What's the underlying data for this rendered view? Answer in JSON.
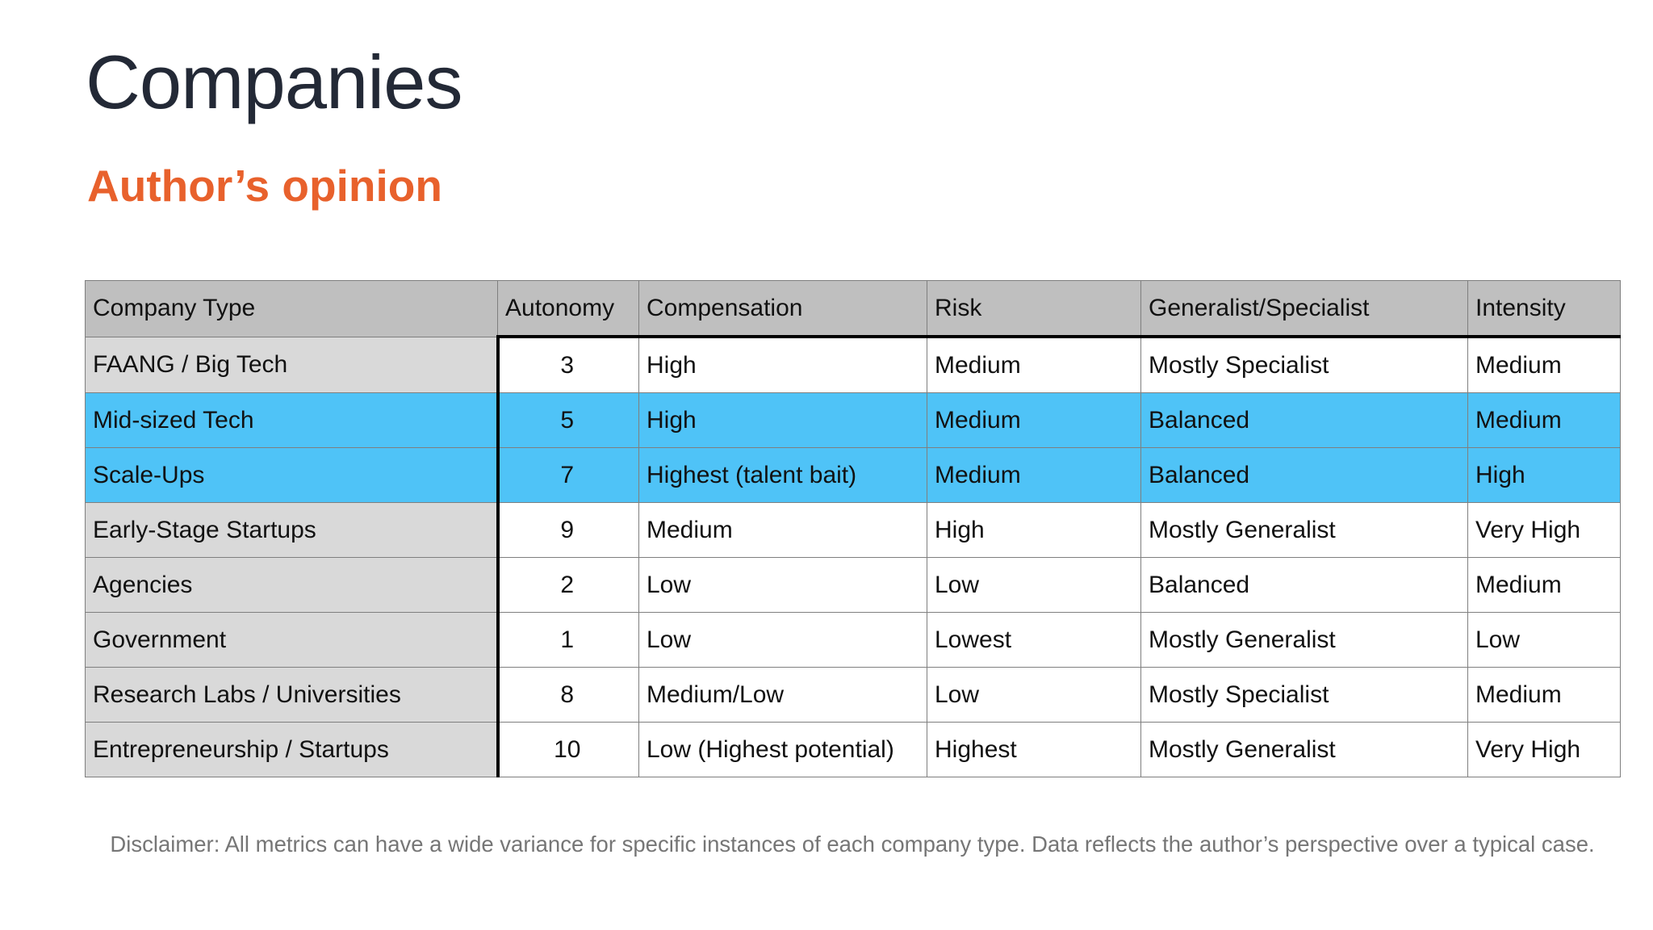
{
  "slide": {
    "title": "Companies",
    "subtitle": "Author’s opinion",
    "disclaimer": "Disclaimer: All metrics can have a wide variance for specific instances of each company type. Data reflects the author’s perspective over a typical case."
  },
  "table": {
    "columns": [
      "Company Type",
      "Autonomy",
      "Compensation",
      "Risk",
      "Generalist/Specialist",
      "Intensity"
    ],
    "rows": [
      {
        "company_type": "FAANG / Big Tech",
        "autonomy": "3",
        "compensation": "High",
        "risk": "Medium",
        "generalist_specialist": "Mostly Specialist",
        "intensity": "Medium",
        "highlighted": false
      },
      {
        "company_type": "Mid-sized Tech",
        "autonomy": "5",
        "compensation": "High",
        "risk": "Medium",
        "generalist_specialist": "Balanced",
        "intensity": "Medium",
        "highlighted": true
      },
      {
        "company_type": "Scale-Ups",
        "autonomy": "7",
        "compensation": "Highest (talent bait)",
        "risk": "Medium",
        "generalist_specialist": "Balanced",
        "intensity": "High",
        "highlighted": true
      },
      {
        "company_type": "Early-Stage Startups",
        "autonomy": "9",
        "compensation": "Medium",
        "risk": "High",
        "generalist_specialist": "Mostly Generalist",
        "intensity": "Very High",
        "highlighted": false
      },
      {
        "company_type": "Agencies",
        "autonomy": "2",
        "compensation": "Low",
        "risk": "Low",
        "generalist_specialist": "Balanced",
        "intensity": "Medium",
        "highlighted": false
      },
      {
        "company_type": "Government",
        "autonomy": "1",
        "compensation": "Low",
        "risk": "Lowest",
        "generalist_specialist": "Mostly Generalist",
        "intensity": "Low",
        "highlighted": false
      },
      {
        "company_type": "Research Labs / Universities",
        "autonomy": "8",
        "compensation": "Medium/Low",
        "risk": "Low",
        "generalist_specialist": "Mostly Specialist",
        "intensity": "Medium",
        "highlighted": false
      },
      {
        "company_type": "Entrepreneurship / Startups",
        "autonomy": "10",
        "compensation": "Low (Highest potential)",
        "risk": "Highest",
        "generalist_specialist": "Mostly Generalist",
        "intensity": "Very High",
        "highlighted": false
      }
    ]
  },
  "colors": {
    "title_color": "#232936",
    "accent_orange": "#e8612c",
    "header_gray": "#bfbfbf",
    "label_gray": "#d9d9d9",
    "highlight_blue": "#4fc3f7",
    "border_gray": "#7f7f7f",
    "muted_gray": "#767676"
  }
}
